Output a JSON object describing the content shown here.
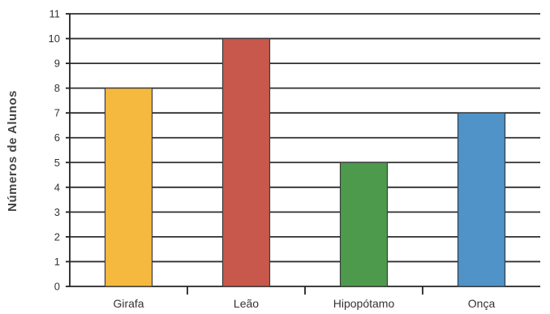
{
  "chart_data": {
    "type": "bar",
    "title": "",
    "xlabel": "",
    "ylabel": "Números de Alunos",
    "categories": [
      "Girafa",
      "Leão",
      "Hipopótamo",
      "Onça"
    ],
    "values": [
      8,
      10,
      5,
      7
    ],
    "colors": [
      "#f5b93f",
      "#c8574c",
      "#4e9a4d",
      "#4f93c9"
    ],
    "ylim": [
      0,
      11
    ],
    "yticks": [
      0,
      1,
      2,
      3,
      4,
      5,
      6,
      7,
      8,
      9,
      10,
      11
    ],
    "grid": true,
    "legend": "none"
  }
}
